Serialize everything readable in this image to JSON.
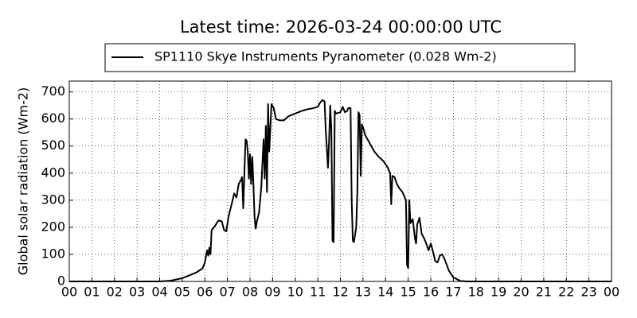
{
  "chart_data": {
    "type": "line",
    "title": "Latest time: 2026-03-24 00:00:00 UTC",
    "y_label": "Global solar radiation (Wm-2)",
    "legend": "top",
    "grid": true,
    "x": [
      0,
      4,
      4.5,
      5,
      5.3,
      5.6,
      5.9,
      6.0,
      6.1,
      6.15,
      6.2,
      6.25,
      6.3,
      6.45,
      6.6,
      6.75,
      6.85,
      6.95,
      7.05,
      7.2,
      7.3,
      7.4,
      7.5,
      7.6,
      7.65,
      7.7,
      7.8,
      7.85,
      7.9,
      7.95,
      8.0,
      8.05,
      8.1,
      8.15,
      8.2,
      8.25,
      8.3,
      8.4,
      8.5,
      8.6,
      8.65,
      8.7,
      8.75,
      8.8,
      8.85,
      8.95,
      9.05,
      9.15,
      9.3,
      9.5,
      9.7,
      10.0,
      10.3,
      10.5,
      10.8,
      11.0,
      11.1,
      11.2,
      11.3,
      11.35,
      11.45,
      11.5,
      11.55,
      11.6,
      11.65,
      11.7,
      11.75,
      11.8,
      12.0,
      12.1,
      12.2,
      12.3,
      12.35,
      12.45,
      12.5,
      12.55,
      12.6,
      12.7,
      12.75,
      12.8,
      12.85,
      12.9,
      12.95,
      13.0,
      13.1,
      13.3,
      13.5,
      13.7,
      13.9,
      14.1,
      14.2,
      14.25,
      14.3,
      14.4,
      14.5,
      14.6,
      14.75,
      14.85,
      14.9,
      14.95,
      15.0,
      15.05,
      15.1,
      15.2,
      15.3,
      15.35,
      15.4,
      15.5,
      15.6,
      15.7,
      15.8,
      15.9,
      16.0,
      16.1,
      16.2,
      16.3,
      16.4,
      16.5,
      16.6,
      16.8,
      17.0,
      17.3,
      17.6,
      24
    ],
    "series": [
      {
        "name": "SP1110 Skye Instruments Pyranometer (0.028 Wm-2)",
        "color": "#000000",
        "values": [
          0,
          0,
          3,
          12,
          22,
          32,
          48,
          70,
          115,
          95,
          125,
          100,
          190,
          205,
          225,
          222,
          190,
          185,
          240,
          290,
          325,
          310,
          360,
          375,
          385,
          270,
          525,
          520,
          480,
          380,
          470,
          360,
          460,
          360,
          240,
          195,
          220,
          255,
          350,
          525,
          380,
          575,
          330,
          655,
          480,
          655,
          640,
          600,
          595,
          595,
          610,
          620,
          630,
          635,
          640,
          645,
          660,
          670,
          665,
          560,
          420,
          520,
          650,
          560,
          150,
          145,
          630,
          620,
          625,
          645,
          625,
          630,
          640,
          640,
          300,
          150,
          145,
          200,
          330,
          625,
          615,
          390,
          580,
          570,
          540,
          510,
          480,
          460,
          445,
          420,
          400,
          285,
          390,
          385,
          360,
          345,
          330,
          310,
          300,
          60,
          50,
          300,
          215,
          230,
          160,
          140,
          210,
          235,
          175,
          160,
          140,
          115,
          140,
          110,
          75,
          70,
          95,
          100,
          85,
          40,
          15,
          2,
          0,
          0
        ]
      }
    ],
    "xlim": [
      0,
      24
    ],
    "xticks": [
      {
        "value": 0,
        "label": "00"
      },
      {
        "value": 1,
        "label": "01"
      },
      {
        "value": 2,
        "label": "02"
      },
      {
        "value": 3,
        "label": "03"
      },
      {
        "value": 4,
        "label": "04"
      },
      {
        "value": 5,
        "label": "05"
      },
      {
        "value": 6,
        "label": "06"
      },
      {
        "value": 7,
        "label": "07"
      },
      {
        "value": 8,
        "label": "08"
      },
      {
        "value": 9,
        "label": "09"
      },
      {
        "value": 10,
        "label": "10"
      },
      {
        "value": 11,
        "label": "11"
      },
      {
        "value": 12,
        "label": "12"
      },
      {
        "value": 13,
        "label": "13"
      },
      {
        "value": 14,
        "label": "14"
      },
      {
        "value": 15,
        "label": "15"
      },
      {
        "value": 16,
        "label": "16"
      },
      {
        "value": 17,
        "label": "17"
      },
      {
        "value": 18,
        "label": "18"
      },
      {
        "value": 19,
        "label": "19"
      },
      {
        "value": 20,
        "label": "20"
      },
      {
        "value": 21,
        "label": "21"
      },
      {
        "value": 22,
        "label": "22"
      },
      {
        "value": 23,
        "label": "23"
      },
      {
        "value": 24,
        "label": "00"
      }
    ],
    "ylim": [
      0,
      740
    ],
    "yticks": [
      0,
      100,
      200,
      300,
      400,
      500,
      600,
      700
    ]
  }
}
